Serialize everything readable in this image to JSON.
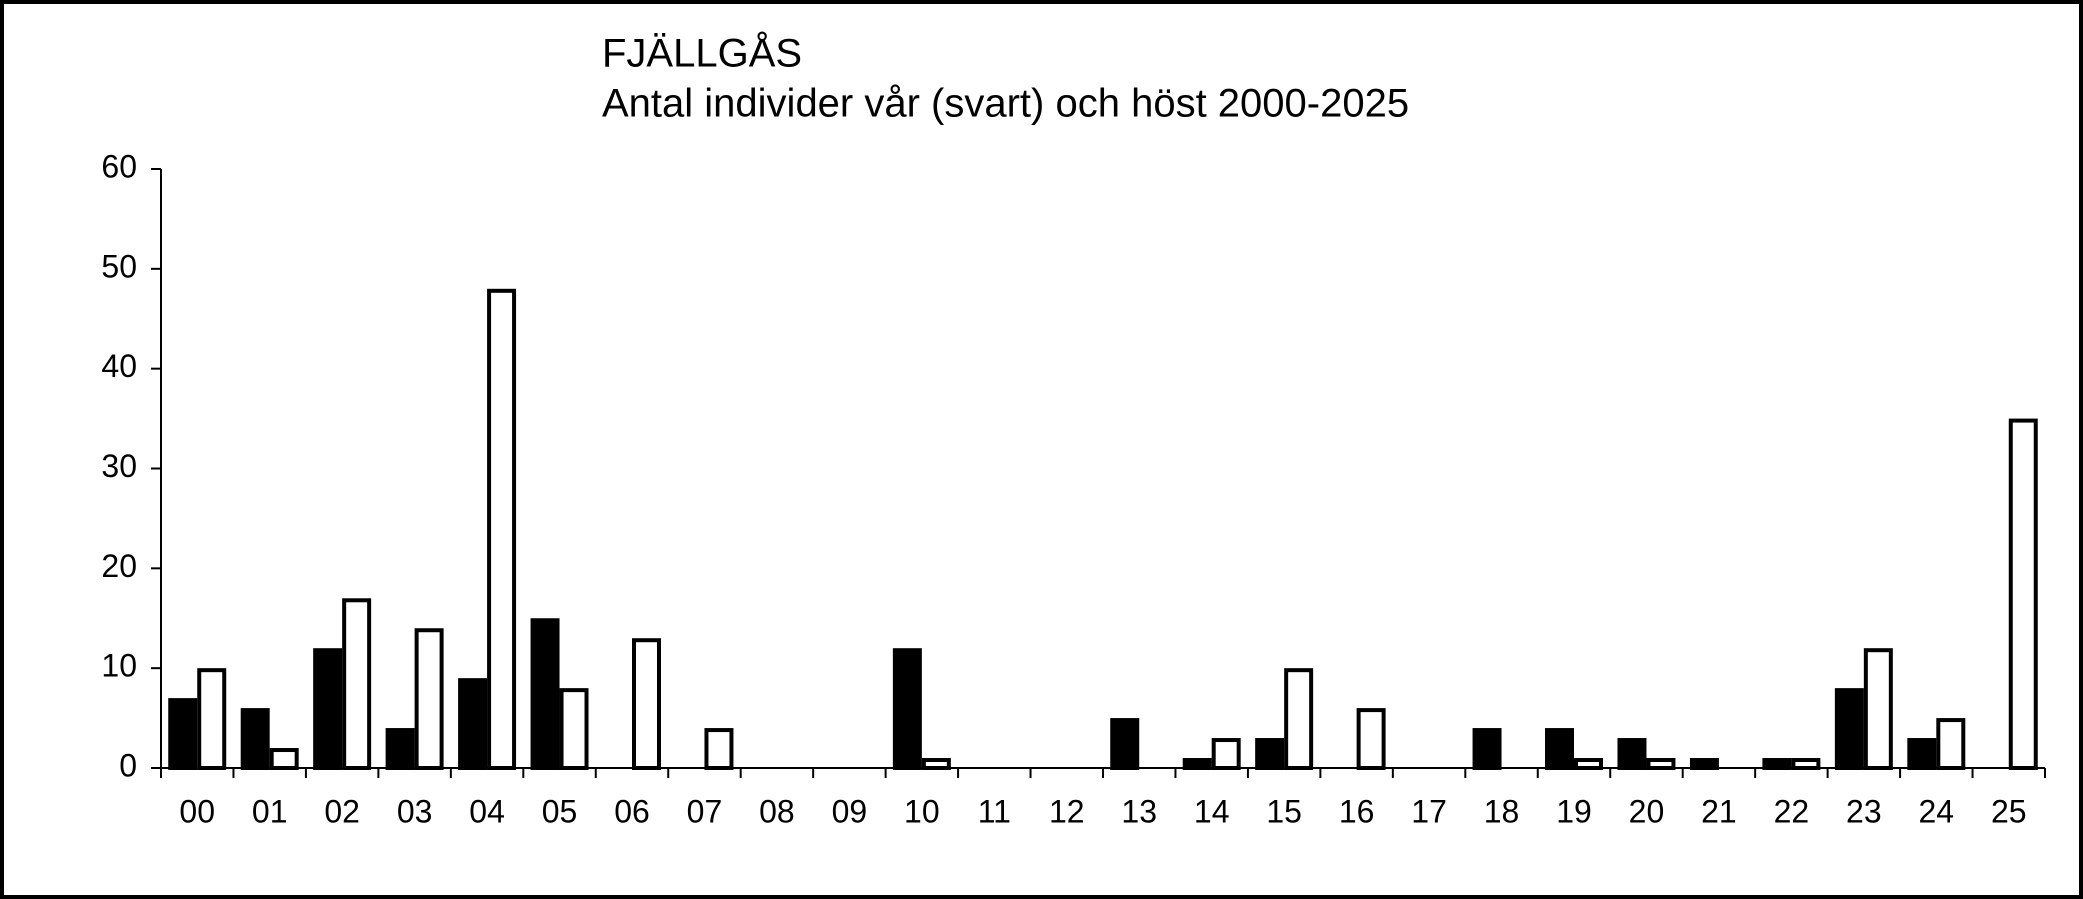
{
  "chart_data": {
    "type": "bar",
    "title": "FJÄLLGÅS",
    "subtitle": "Antal individer vår (svart) och höst 2000-2025",
    "categories": [
      "00",
      "01",
      "02",
      "03",
      "04",
      "05",
      "06",
      "07",
      "08",
      "09",
      "10",
      "11",
      "12",
      "13",
      "14",
      "15",
      "16",
      "17",
      "18",
      "19",
      "20",
      "21",
      "22",
      "23",
      "24",
      "25"
    ],
    "series": [
      {
        "color": "#000000",
        "values": [
          7,
          6,
          12,
          4,
          9,
          15,
          0,
          0,
          0,
          0,
          12,
          0,
          0,
          5,
          1,
          3,
          0,
          0,
          4,
          4,
          3,
          1,
          1,
          8,
          3,
          0
        ]
      },
      {
        "color": "#ffffff",
        "values": [
          10,
          2,
          17,
          14,
          48,
          8,
          13,
          4,
          0,
          0,
          1,
          0,
          0,
          0,
          3,
          10,
          6,
          0,
          0,
          1,
          1,
          0,
          1,
          12,
          5,
          35
        ]
      }
    ],
    "ylim": [
      0,
      60
    ],
    "yticks": [
      0,
      10,
      20,
      30,
      40,
      50,
      60
    ],
    "grid": false
  }
}
